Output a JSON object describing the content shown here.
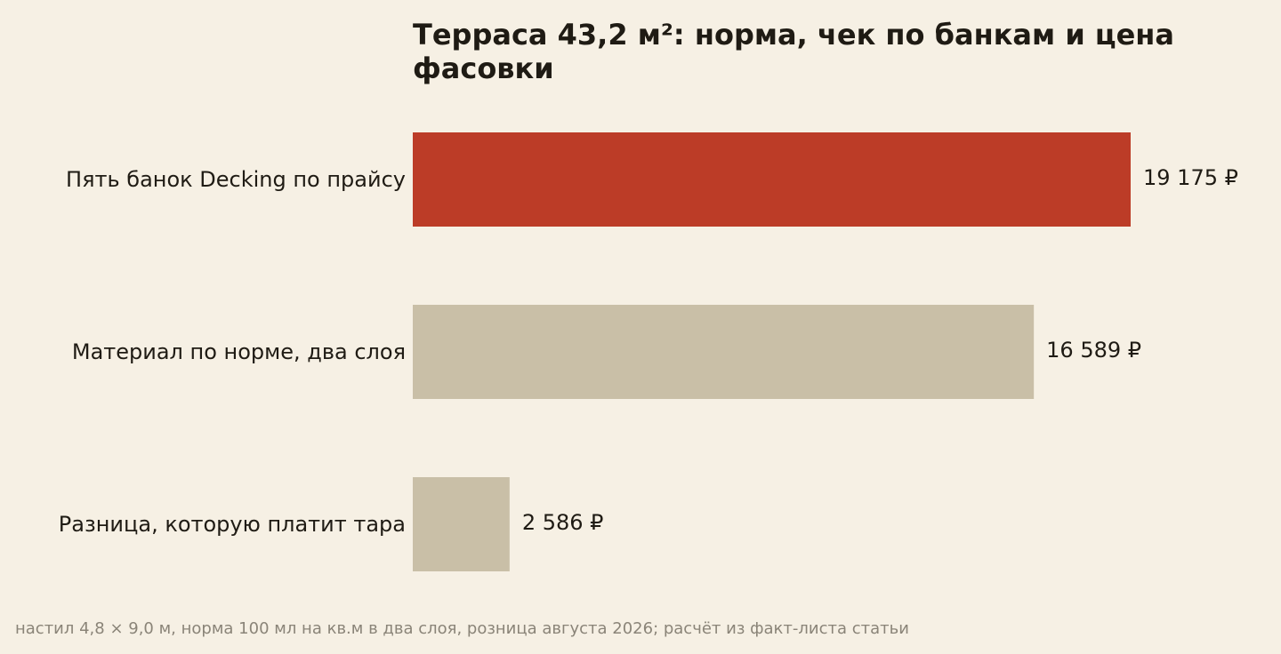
{
  "chart_data": {
    "type": "bar",
    "orientation": "horizontal",
    "title": "Терраса 43,2 м²: норма, чек по банкам и цена фасовки",
    "categories": [
      "Пять банок Decking по прайсу",
      "Материал по норме, два слоя",
      "Разница, которую платит тара"
    ],
    "values": [
      19175,
      16589,
      2586
    ],
    "value_labels": [
      "19 175 ₽",
      "16 589 ₽",
      "2 586 ₽"
    ],
    "bar_colors": [
      "#bc3c27",
      "#c9bfa7",
      "#c9bfa7"
    ],
    "xlim": [
      0,
      19175
    ],
    "grid": false,
    "legend": "none"
  },
  "footnote": "настил 4,8 × 9,0 м, норма 100 мл на кв.м в два слоя, розница августа 2026; расчёт из факт-листа статьи",
  "colors": {
    "background": "#f6f0e4",
    "highlight": "#bc3c27",
    "neutral": "#c9bfa7",
    "text": "#1f1b14",
    "muted": "#8a8478"
  }
}
